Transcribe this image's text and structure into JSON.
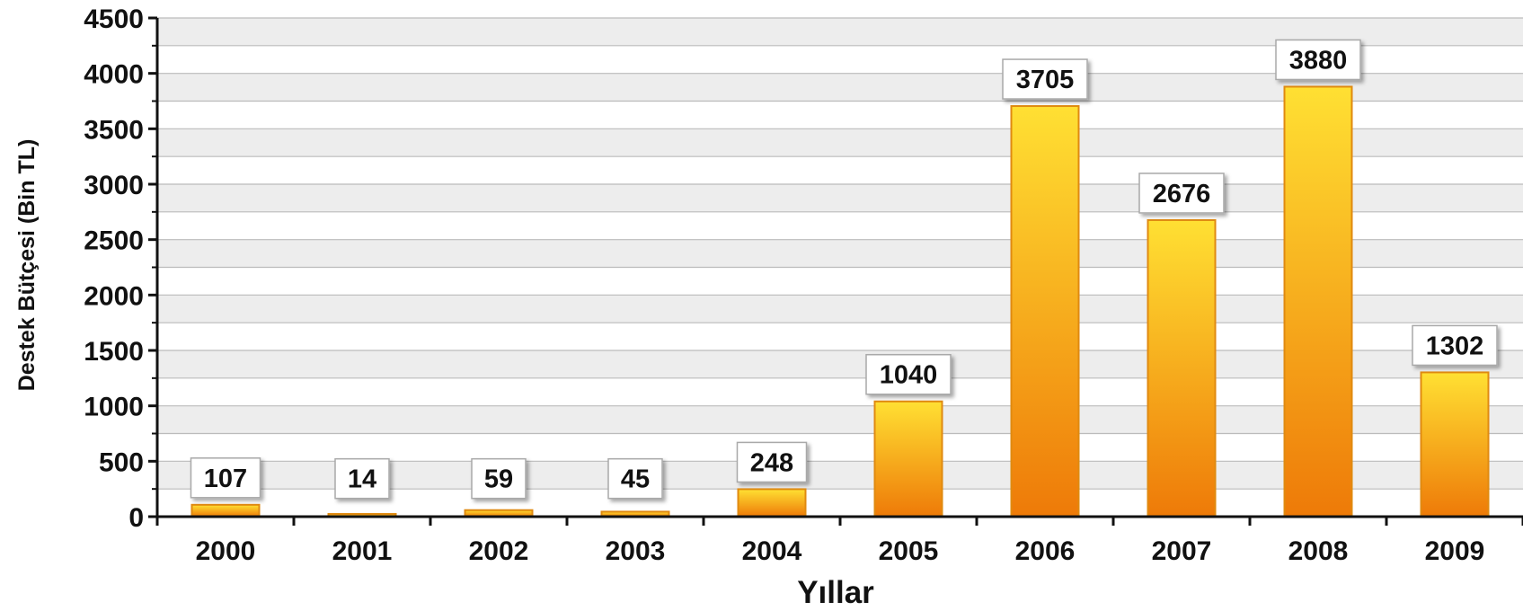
{
  "chart_data": {
    "type": "bar",
    "title": "",
    "xlabel": "Yıllar",
    "ylabel": "Destek Bütçesi (Bin TL)",
    "categories": [
      "2000",
      "2001",
      "2002",
      "2003",
      "2004",
      "2005",
      "2006",
      "2007",
      "2008",
      "2009"
    ],
    "values": [
      107,
      14,
      59,
      45,
      248,
      1040,
      3705,
      2676,
      3880,
      1302
    ],
    "data_labels": [
      "107",
      "14",
      "59",
      "45",
      "248",
      "1040",
      "3705",
      "2676",
      "3880",
      "1302"
    ],
    "ylim": [
      0,
      4500
    ],
    "yticks": [
      "0",
      "500",
      "1000",
      "1500",
      "2000",
      "2500",
      "3000",
      "3500",
      "4000",
      "4500"
    ],
    "grid": true,
    "legend": "none",
    "colors": {
      "bar_top": "#ffe033",
      "bar_bottom": "#ee7a08",
      "bar_border": "#e08a10",
      "band_shaded": "#ededed",
      "band_plain": "#ffffff",
      "grid_line": "#bbbbbb",
      "axis": "#111111",
      "label_box_fill": "#ffffff",
      "label_box_border": "#a9a9a9"
    }
  }
}
